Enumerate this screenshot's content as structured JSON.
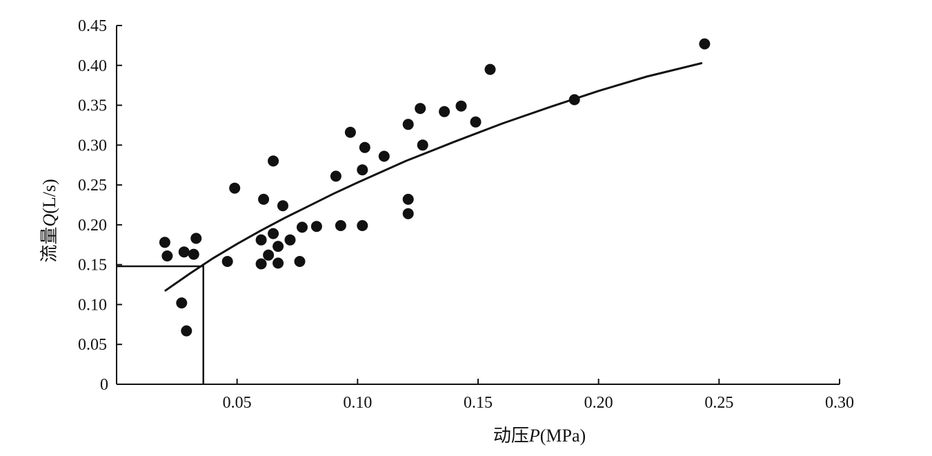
{
  "chart_data": {
    "type": "scatter",
    "xlabel_parts": [
      "动压",
      "P",
      "(MPa)"
    ],
    "ylabel_parts": [
      "流量",
      "Q",
      "(L/s)"
    ],
    "xlim": [
      0,
      0.3
    ],
    "ylim": [
      0,
      0.45
    ],
    "xticks": [
      {
        "value": 0.05,
        "label": "0.05"
      },
      {
        "value": 0.1,
        "label": "0.10"
      },
      {
        "value": 0.15,
        "label": "0.15"
      },
      {
        "value": 0.2,
        "label": "0.20"
      },
      {
        "value": 0.25,
        "label": "0.25"
      },
      {
        "value": 0.3,
        "label": "0.30"
      }
    ],
    "yticks": [
      {
        "value": 0,
        "label": "0"
      },
      {
        "value": 0.05,
        "label": "0.05"
      },
      {
        "value": 0.1,
        "label": "0.10"
      },
      {
        "value": 0.15,
        "label": "0.15"
      },
      {
        "value": 0.2,
        "label": "0.20"
      },
      {
        "value": 0.25,
        "label": "0.25"
      },
      {
        "value": 0.3,
        "label": "0.30"
      },
      {
        "value": 0.35,
        "label": "0.35"
      },
      {
        "value": 0.4,
        "label": "0.40"
      },
      {
        "value": 0.45,
        "label": "0.45"
      }
    ],
    "grid": false,
    "points": [
      [
        0.02,
        0.178
      ],
      [
        0.021,
        0.161
      ],
      [
        0.028,
        0.166
      ],
      [
        0.032,
        0.163
      ],
      [
        0.033,
        0.183
      ],
      [
        0.027,
        0.102
      ],
      [
        0.029,
        0.067
      ],
      [
        0.046,
        0.154
      ],
      [
        0.049,
        0.246
      ],
      [
        0.06,
        0.151
      ],
      [
        0.06,
        0.181
      ],
      [
        0.061,
        0.232
      ],
      [
        0.063,
        0.162
      ],
      [
        0.065,
        0.189
      ],
      [
        0.065,
        0.28
      ],
      [
        0.067,
        0.152
      ],
      [
        0.067,
        0.173
      ],
      [
        0.069,
        0.224
      ],
      [
        0.072,
        0.181
      ],
      [
        0.076,
        0.154
      ],
      [
        0.077,
        0.197
      ],
      [
        0.083,
        0.198
      ],
      [
        0.091,
        0.261
      ],
      [
        0.093,
        0.199
      ],
      [
        0.097,
        0.316
      ],
      [
        0.102,
        0.199
      ],
      [
        0.102,
        0.269
      ],
      [
        0.103,
        0.297
      ],
      [
        0.111,
        0.286
      ],
      [
        0.121,
        0.214
      ],
      [
        0.121,
        0.232
      ],
      [
        0.121,
        0.326
      ],
      [
        0.126,
        0.346
      ],
      [
        0.127,
        0.3
      ],
      [
        0.136,
        0.342
      ],
      [
        0.143,
        0.349
      ],
      [
        0.149,
        0.329
      ],
      [
        0.155,
        0.395
      ],
      [
        0.19,
        0.357
      ],
      [
        0.244,
        0.427
      ]
    ],
    "fit_curve": [
      [
        0.02,
        0.117
      ],
      [
        0.03,
        0.138
      ],
      [
        0.04,
        0.158
      ],
      [
        0.05,
        0.176
      ],
      [
        0.06,
        0.193
      ],
      [
        0.07,
        0.209
      ],
      [
        0.08,
        0.224
      ],
      [
        0.09,
        0.239
      ],
      [
        0.1,
        0.253
      ],
      [
        0.12,
        0.28
      ],
      [
        0.14,
        0.304
      ],
      [
        0.16,
        0.327
      ],
      [
        0.18,
        0.348
      ],
      [
        0.2,
        0.368
      ],
      [
        0.22,
        0.386
      ],
      [
        0.243,
        0.403
      ]
    ],
    "reference_point": [
      0.036,
      0.148
    ]
  }
}
